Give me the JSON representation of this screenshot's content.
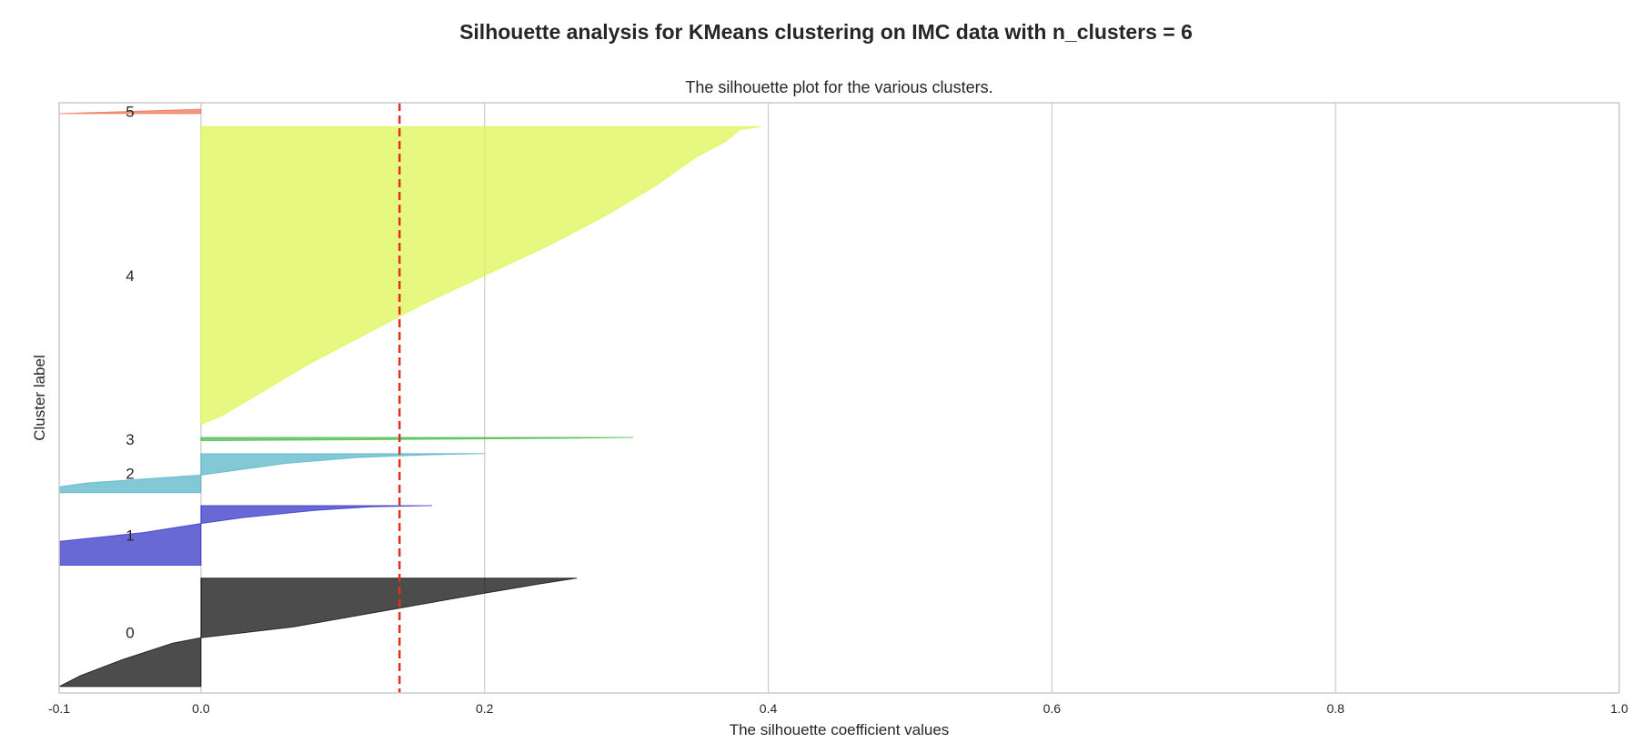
{
  "suptitle": "Silhouette analysis for KMeans clustering on IMC data with n_clusters = 6",
  "chart_data": {
    "type": "area",
    "title": "The silhouette plot for the various clusters.",
    "xlabel": "The silhouette coefficient values",
    "ylabel": "Cluster label",
    "xlim": [
      -0.1,
      1.0
    ],
    "xticks": [
      "-0.1",
      "0.0",
      "0.2",
      "0.4",
      "0.6",
      "0.8",
      "1.0"
    ],
    "xtick_values": [
      -0.1,
      0.0,
      0.2,
      0.4,
      0.6,
      0.8,
      1.0
    ],
    "grid": true,
    "average_silhouette_score": 0.14,
    "average_line_color": "#e0301e",
    "clusters": [
      {
        "label": "0",
        "color": "#000000",
        "size": 1.0,
        "profile": [
          [
            0,
            0.265
          ],
          [
            0.05,
            0.24
          ],
          [
            0.15,
            0.195
          ],
          [
            0.3,
            0.13
          ],
          [
            0.45,
            0.065
          ],
          [
            0.55,
            0.0
          ],
          [
            0.6,
            -0.02
          ],
          [
            0.75,
            -0.055
          ],
          [
            0.9,
            -0.085
          ],
          [
            1.0,
            -0.1
          ]
        ]
      },
      {
        "label": "1",
        "color": "#2a2ac4",
        "size": 0.55,
        "profile": [
          [
            0,
            0.163
          ],
          [
            0.02,
            0.12
          ],
          [
            0.08,
            0.08
          ],
          [
            0.2,
            0.03
          ],
          [
            0.3,
            0.0
          ],
          [
            0.45,
            -0.04
          ],
          [
            0.6,
            -0.1
          ],
          [
            1.0,
            -0.1
          ]
        ]
      },
      {
        "label": "2",
        "color": "#4eb0c4",
        "size": 0.36,
        "profile": [
          [
            0,
            0.2
          ],
          [
            0.03,
            0.16
          ],
          [
            0.1,
            0.11
          ],
          [
            0.25,
            0.06
          ],
          [
            0.45,
            0.02
          ],
          [
            0.55,
            0.0
          ],
          [
            0.6,
            -0.02
          ],
          [
            0.75,
            -0.08
          ],
          [
            0.85,
            -0.1
          ],
          [
            1.0,
            -0.1
          ]
        ]
      },
      {
        "label": "3",
        "color": "#3cb83c",
        "size": 0.03,
        "profile": [
          [
            0,
            0.305
          ],
          [
            0.3,
            0.25
          ],
          [
            0.6,
            0.15
          ],
          [
            1.0,
            0.01
          ]
        ]
      },
      {
        "label": "4",
        "color": "#dbf54a",
        "size": 2.75,
        "profile": [
          [
            0,
            0.395
          ],
          [
            0.01,
            0.38
          ],
          [
            0.05,
            0.37
          ],
          [
            0.1,
            0.35
          ],
          [
            0.2,
            0.32
          ],
          [
            0.3,
            0.285
          ],
          [
            0.4,
            0.245
          ],
          [
            0.5,
            0.2
          ],
          [
            0.6,
            0.155
          ],
          [
            0.7,
            0.115
          ],
          [
            0.8,
            0.075
          ],
          [
            0.9,
            0.04
          ],
          [
            0.97,
            0.015
          ],
          [
            1.0,
            0.0
          ]
        ]
      },
      {
        "label": "5",
        "color": "#f26a4f",
        "size": 0.04,
        "profile": [
          [
            0,
            0.0
          ],
          [
            0.5,
            -0.05
          ],
          [
            1.0,
            -0.1
          ]
        ]
      }
    ]
  },
  "colors": {
    "grid": "#cccccc",
    "axes_edge": "#cccccc",
    "text": "#262626"
  }
}
